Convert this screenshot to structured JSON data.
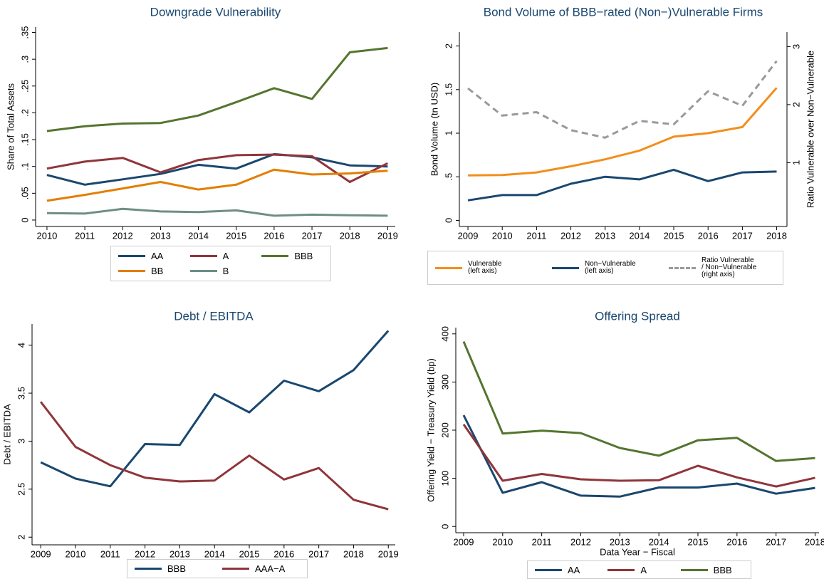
{
  "chart_data": [
    {
      "type": "line",
      "title": "Downgrade Vulnerability",
      "ylabel": "Share of Total Assets",
      "x": [
        2010,
        2011,
        2012,
        2013,
        2014,
        2015,
        2016,
        2017,
        2018,
        2019
      ],
      "xlim": [
        2009.7,
        2019.2
      ],
      "xticks": [
        2010,
        2011,
        2012,
        2013,
        2014,
        2015,
        2016,
        2017,
        2018,
        2019
      ],
      "ylim": [
        -0.012,
        0.36
      ],
      "yticks": [
        0,
        {
          "value": 0.05,
          "label": ".05"
        },
        {
          "value": 0.1,
          "label": ".1"
        },
        {
          "value": 0.15,
          "label": ".15"
        },
        {
          "value": 0.2,
          "label": ".2"
        },
        {
          "value": 0.25,
          "label": ".25"
        },
        {
          "value": 0.3,
          "label": ".3"
        },
        {
          "value": 0.35,
          "label": ".35"
        }
      ],
      "series": [
        {
          "name": "AA",
          "color": "#1a476f",
          "values": [
            0.084,
            0.066,
            0.076,
            0.086,
            0.103,
            0.096,
            0.123,
            0.117,
            0.102,
            0.1
          ]
        },
        {
          "name": "A",
          "color": "#90353b",
          "values": [
            0.096,
            0.109,
            0.116,
            0.089,
            0.112,
            0.121,
            0.122,
            0.119,
            0.071,
            0.106
          ]
        },
        {
          "name": "BBB",
          "color": "#55752f",
          "values": [
            0.166,
            0.175,
            0.18,
            0.181,
            0.195,
            0.22,
            0.246,
            0.226,
            0.313,
            0.321
          ]
        },
        {
          "name": "BB",
          "color": "#e37e00",
          "values": [
            0.036,
            0.047,
            0.059,
            0.071,
            0.057,
            0.066,
            0.094,
            0.085,
            0.087,
            0.092
          ]
        },
        {
          "name": "B",
          "color": "#6e8e84",
          "values": [
            0.013,
            0.012,
            0.021,
            0.016,
            0.015,
            0.018,
            0.008,
            0.01,
            0.009,
            0.008
          ]
        }
      ]
    },
    {
      "type": "line",
      "title": "Bond Volume of BBB−rated (Non−)Vulnerable Firms",
      "ylabel": "Bond Volume (tn USD)",
      "y2label": "Ratio Vulnerable over Non−Vulnerable",
      "x": [
        2009,
        2010,
        2011,
        2012,
        2013,
        2014,
        2015,
        2016,
        2017,
        2018
      ],
      "xlim": [
        2008.75,
        2018.3
      ],
      "xticks": [
        2009,
        2010,
        2011,
        2012,
        2013,
        2014,
        2015,
        2016,
        2017,
        2018
      ],
      "ylim": [
        -0.07,
        2.16
      ],
      "yticks": [
        0,
        {
          "value": 0.5,
          "label": ".5"
        },
        1,
        1.5,
        2
      ],
      "y2lim": [
        -0.1,
        3.25
      ],
      "y2ticks": [
        1,
        2,
        3
      ],
      "series": [
        {
          "name": "Vulnerable\n(left axis)",
          "color": "#f28e1c",
          "values": [
            0.516,
            0.52,
            0.55,
            0.62,
            0.7,
            0.8,
            0.96,
            1.0,
            1.07,
            1.52
          ]
        },
        {
          "name": "Non−Vulnerable\n(left axis)",
          "color": "#1a476f",
          "values": [
            0.23,
            0.29,
            0.29,
            0.42,
            0.5,
            0.47,
            0.58,
            0.45,
            0.55,
            0.56
          ]
        },
        {
          "name": "Ratio Vulnerable\n/ Non−Vulnerable\n(right axis)",
          "color": "#999999",
          "dash": true,
          "axis": "y2",
          "values": [
            2.28,
            1.81,
            1.87,
            1.56,
            1.43,
            1.72,
            1.66,
            2.23,
            1.98,
            2.75
          ]
        }
      ]
    },
    {
      "type": "line",
      "title": "Debt / EBITDA",
      "ylabel": "Debt / EBITDA",
      "x": [
        2009,
        2010,
        2011,
        2012,
        2013,
        2014,
        2015,
        2016,
        2017,
        2018,
        2019
      ],
      "xlim": [
        2008.75,
        2019.2
      ],
      "xticks": [
        2009,
        2010,
        2011,
        2012,
        2013,
        2014,
        2015,
        2016,
        2017,
        2018,
        2019
      ],
      "ylim": [
        1.92,
        4.22
      ],
      "yticks": [
        2,
        2.5,
        3,
        3.5,
        4
      ],
      "series": [
        {
          "name": "BBB",
          "color": "#1a476f",
          "values": [
            2.78,
            2.61,
            2.53,
            2.97,
            2.96,
            3.49,
            3.3,
            3.63,
            3.52,
            3.74,
            4.15
          ]
        },
        {
          "name": "AAA−A",
          "color": "#90353b",
          "values": [
            3.41,
            2.94,
            2.75,
            2.62,
            2.58,
            2.59,
            2.85,
            2.6,
            2.72,
            2.39,
            2.29
          ]
        }
      ]
    },
    {
      "type": "line",
      "title": "Offering Spread",
      "ylabel": "Offering Yield − Treasury Yield (bp)",
      "xlabel": "Data Year − Fiscal",
      "x": [
        2009,
        2010,
        2011,
        2012,
        2013,
        2014,
        2015,
        2016,
        2017,
        2018
      ],
      "xlim": [
        2008.8,
        2018.1
      ],
      "xticks": [
        2009,
        2010,
        2011,
        2012,
        2013,
        2014,
        2015,
        2016,
        2017,
        2018
      ],
      "ylim": [
        -13,
        413
      ],
      "yticks": [
        0,
        100,
        200,
        300,
        400
      ],
      "series": [
        {
          "name": "AA",
          "color": "#1a476f",
          "values": [
            231,
            70,
            92,
            64,
            62,
            81,
            81,
            89,
            68,
            80
          ]
        },
        {
          "name": "A",
          "color": "#90353b",
          "values": [
            212,
            95,
            109,
            98,
            95,
            96,
            126,
            102,
            83,
            101
          ]
        },
        {
          "name": "BBB",
          "color": "#55752f",
          "values": [
            384,
            193,
            199,
            194,
            163,
            147,
            179,
            184,
            136,
            142
          ]
        }
      ]
    }
  ]
}
